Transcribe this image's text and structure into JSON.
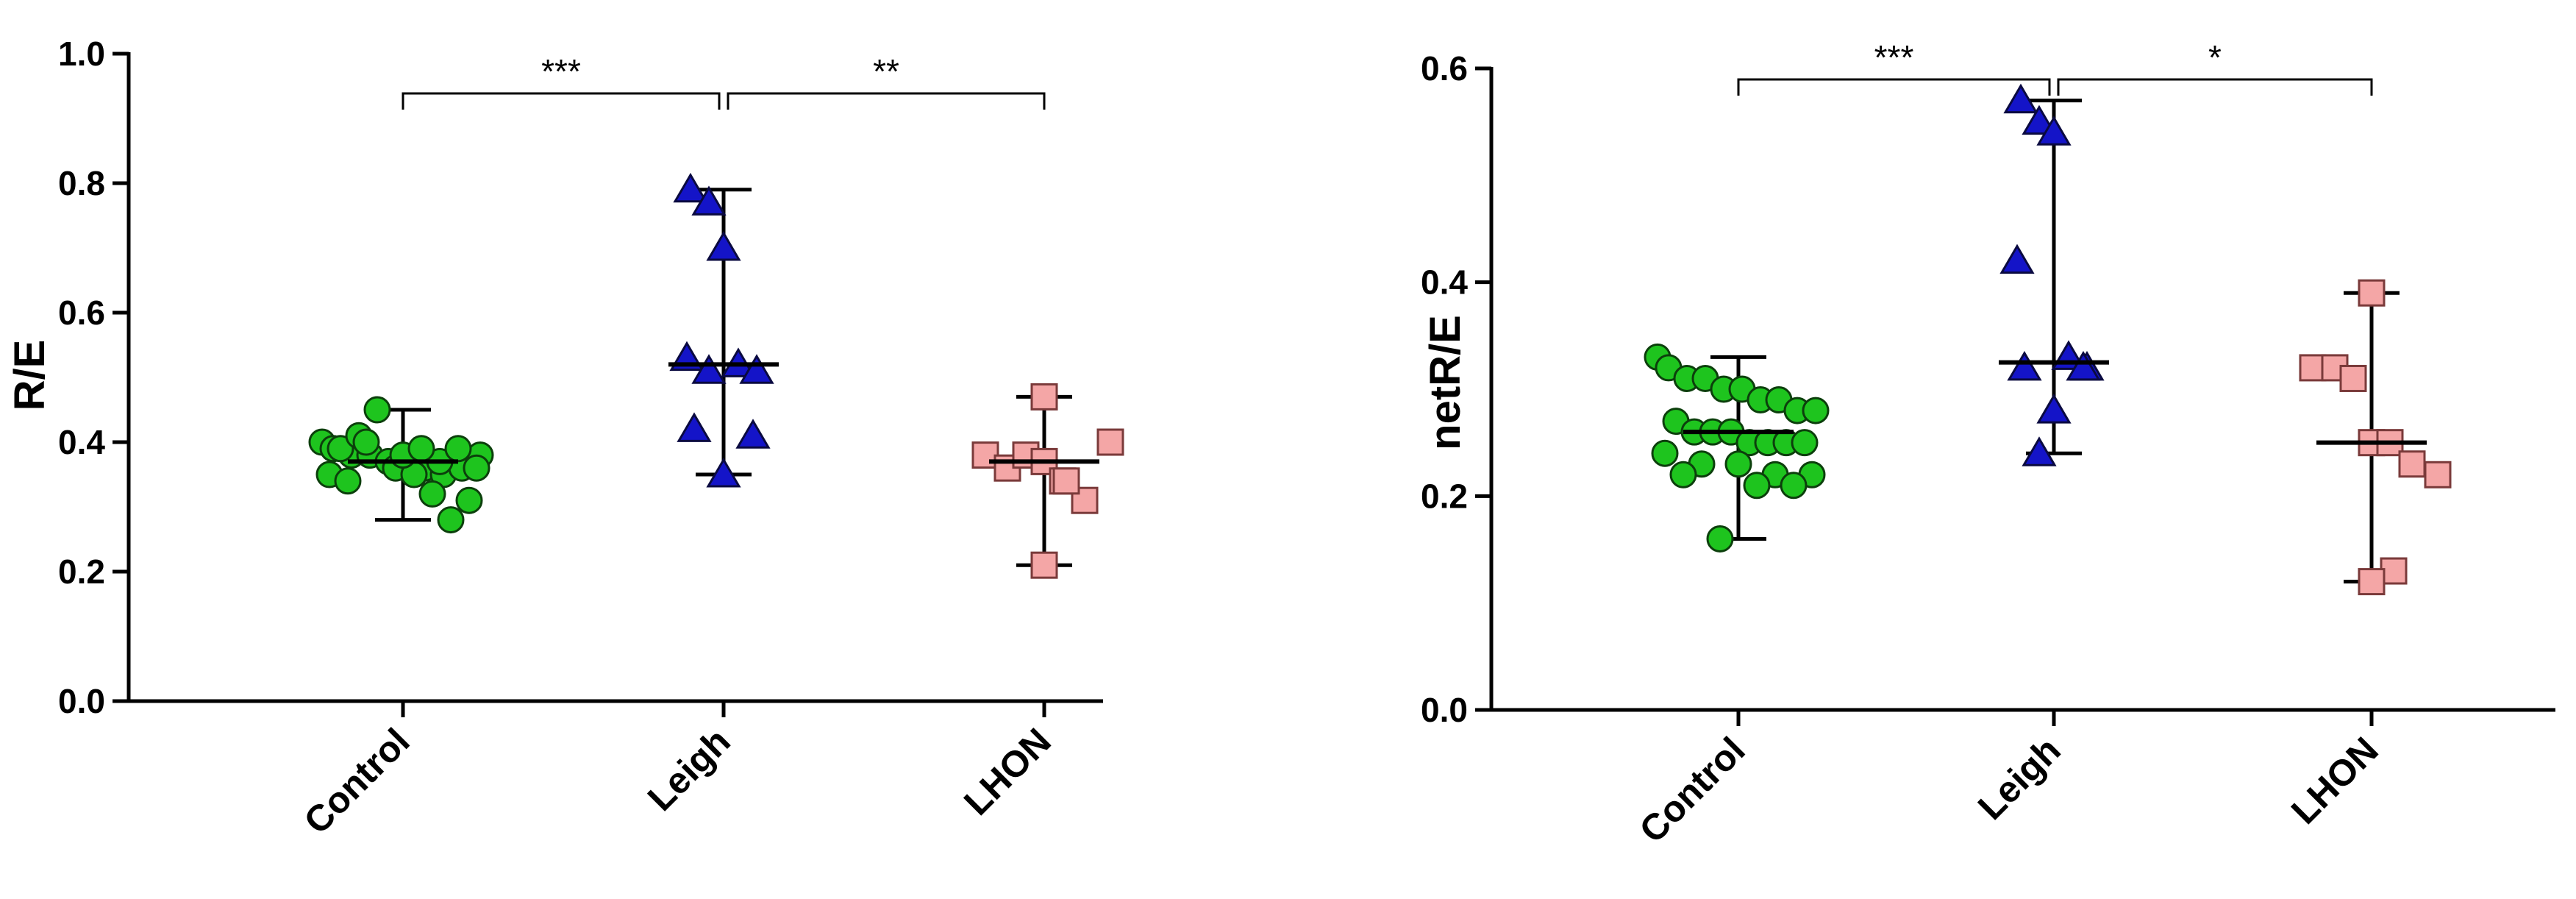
{
  "chart_data": [
    {
      "type": "scatter",
      "ylabel": "R/E",
      "ylim": [
        0,
        1.0
      ],
      "yticks": [
        0.0,
        0.2,
        0.4,
        0.6,
        0.8,
        1.0
      ],
      "ytick_labels": [
        "0.0",
        "0.2",
        "0.4",
        "0.6",
        "0.8",
        "1.0"
      ],
      "categories": [
        "Control",
        "Leigh",
        "LHON"
      ],
      "grid": false,
      "series": [
        {
          "category": "Control",
          "marker": "circle",
          "color": "#1ec41e",
          "values": [
            0.4,
            0.39,
            0.38,
            0.38,
            0.37,
            0.37,
            0.36,
            0.35,
            0.36,
            0.38,
            0.39,
            0.41,
            0.45,
            0.36,
            0.35,
            0.32,
            0.28,
            0.31,
            0.35,
            0.4,
            0.38,
            0.37,
            0.36,
            0.34,
            0.39,
            0.39
          ],
          "median": 0.37,
          "range": [
            0.28,
            0.45
          ]
        },
        {
          "category": "Leigh",
          "marker": "triangle",
          "color": "#1414c8",
          "values": [
            0.79,
            0.77,
            0.7,
            0.53,
            0.52,
            0.51,
            0.42,
            0.41,
            0.35,
            0.51
          ],
          "median": 0.52,
          "range": [
            0.35,
            0.79
          ]
        },
        {
          "category": "LHON",
          "marker": "square",
          "color": "#f4a6a6",
          "values": [
            0.47,
            0.38,
            0.36,
            0.38,
            0.37,
            0.34,
            0.31,
            0.4,
            0.34,
            0.21
          ],
          "median": 0.37,
          "range": [
            0.21,
            0.47
          ]
        }
      ],
      "annotations": [
        {
          "from": "Control",
          "to": "Leigh",
          "label": "***"
        },
        {
          "from": "Leigh",
          "to": "LHON",
          "label": "**"
        }
      ]
    },
    {
      "type": "scatter",
      "ylabel": "netR/E",
      "ylim": [
        0,
        0.6
      ],
      "yticks": [
        0.0,
        0.2,
        0.4,
        0.6
      ],
      "ytick_labels": [
        "0.0",
        "0.2",
        "0.4",
        "0.6"
      ],
      "categories": [
        "Control",
        "Leigh",
        "LHON"
      ],
      "grid": false,
      "series": [
        {
          "category": "Control",
          "marker": "circle",
          "color": "#1ec41e",
          "values": [
            0.33,
            0.32,
            0.31,
            0.31,
            0.3,
            0.3,
            0.29,
            0.29,
            0.28,
            0.28,
            0.27,
            0.26,
            0.26,
            0.26,
            0.25,
            0.25,
            0.25,
            0.25,
            0.24,
            0.23,
            0.23,
            0.22,
            0.22,
            0.22,
            0.21,
            0.21,
            0.16
          ],
          "median": 0.26,
          "range": [
            0.16,
            0.33
          ]
        },
        {
          "category": "Leigh",
          "marker": "triangle",
          "color": "#1414c8",
          "values": [
            0.57,
            0.55,
            0.54,
            0.42,
            0.33,
            0.32,
            0.32,
            0.32,
            0.28,
            0.24
          ],
          "median": 0.325,
          "range": [
            0.24,
            0.57
          ]
        },
        {
          "category": "LHON",
          "marker": "square",
          "color": "#f4a6a6",
          "values": [
            0.39,
            0.32,
            0.32,
            0.31,
            0.25,
            0.25,
            0.23,
            0.22,
            0.13,
            0.12
          ],
          "median": 0.25,
          "range": [
            0.12,
            0.39
          ]
        }
      ],
      "annotations": [
        {
          "from": "Control",
          "to": "Leigh",
          "label": "***"
        },
        {
          "from": "Leigh",
          "to": "LHON",
          "label": "*"
        }
      ]
    }
  ]
}
